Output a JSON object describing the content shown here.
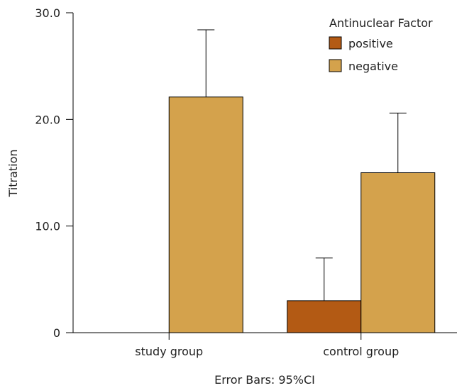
{
  "chart_data": {
    "type": "bar",
    "categories": [
      "study group",
      "control group"
    ],
    "series": [
      {
        "name": "positive",
        "color": "#b35a14",
        "values": [
          null,
          3.0
        ],
        "error_upper": [
          null,
          7.0
        ]
      },
      {
        "name": "negative",
        "color": "#d4a24c",
        "values": [
          22.1,
          15.0
        ],
        "error_upper": [
          28.4,
          20.6
        ]
      }
    ],
    "ylabel": "Titration",
    "xlabel": "",
    "ylim": [
      0,
      30
    ],
    "yticks": [
      {
        "value": 0,
        "label": "0"
      },
      {
        "value": 10,
        "label": "10.0"
      },
      {
        "value": 20,
        "label": "20.0"
      },
      {
        "value": 30,
        "label": "30.0"
      }
    ],
    "legend": {
      "title": "Antinuclear Factor",
      "position": "top-right"
    },
    "footnote": "Error Bars: 95%CI",
    "grid": false
  }
}
